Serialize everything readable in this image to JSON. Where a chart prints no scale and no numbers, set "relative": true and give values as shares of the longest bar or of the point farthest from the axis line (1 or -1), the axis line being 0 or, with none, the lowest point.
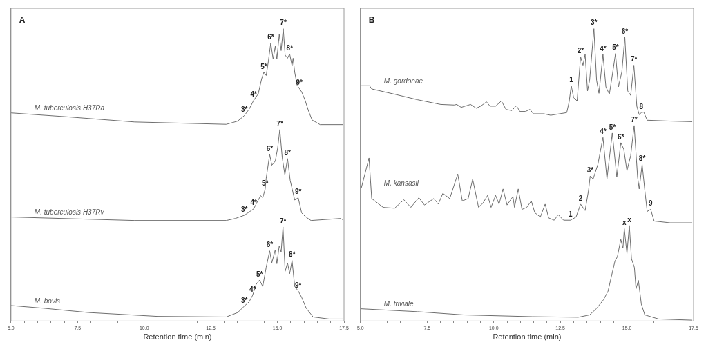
{
  "chart_data": [
    {
      "type": "line",
      "title": "A",
      "xlabel": "Retention time (min)",
      "relative": true,
      "grid": false,
      "legend": false,
      "marker": "none",
      "line_style": "solid",
      "xlim": [
        5,
        17.5
      ],
      "xticks": [
        {
          "value": 5,
          "label": "5.0"
        },
        {
          "value": 5.5,
          "label": null
        },
        {
          "value": 6,
          "label": null
        },
        {
          "value": 6.5,
          "label": null
        },
        {
          "value": 7,
          "label": null
        },
        {
          "value": 7.5,
          "label": "7.5"
        },
        {
          "value": 8,
          "label": null
        },
        {
          "value": 8.5,
          "label": null
        },
        {
          "value": 9,
          "label": null
        },
        {
          "value": 9.5,
          "label": null
        },
        {
          "value": 10,
          "label": "10.0"
        },
        {
          "value": 10.5,
          "label": null
        },
        {
          "value": 11,
          "label": null
        },
        {
          "value": 11.5,
          "label": null
        },
        {
          "value": 12,
          "label": null
        },
        {
          "value": 12.5,
          "label": "12.5"
        },
        {
          "value": 13,
          "label": null
        },
        {
          "value": 13.5,
          "label": null
        },
        {
          "value": 14,
          "label": null
        },
        {
          "value": 14.5,
          "label": null
        },
        {
          "value": 15,
          "label": "15.0"
        },
        {
          "value": 15.5,
          "label": null
        },
        {
          "value": 16,
          "label": null
        },
        {
          "value": 16.5,
          "label": null
        },
        {
          "value": 17,
          "label": null
        },
        {
          "value": 17.5,
          "label": "17.5"
        }
      ],
      "series": [
        {
          "name": "M. tuberculosis H37Ra",
          "color": "#6e6e6e",
          "x": [
            5.0,
            7.06,
            9.64,
            13.08,
            13.51,
            13.76,
            13.94,
            14.11,
            14.28,
            14.41,
            14.49,
            14.58,
            14.66,
            14.75,
            14.84,
            14.92,
            14.98,
            15.07,
            15.14,
            15.22,
            15.29,
            15.38,
            15.46,
            15.55,
            15.59,
            15.65,
            15.74,
            15.82,
            15.91,
            16.04,
            16.17,
            16.3,
            16.6,
            17.45
          ],
          "values": [
            0.712,
            0.699,
            0.681,
            0.673,
            0.684,
            0.703,
            0.725,
            0.755,
            0.777,
            0.829,
            0.851,
            0.84,
            0.888,
            0.951,
            0.896,
            0.94,
            0.896,
            0.981,
            0.925,
            1.0,
            0.91,
            0.899,
            0.914,
            0.873,
            0.899,
            0.851,
            0.807,
            0.796,
            0.784,
            0.755,
            0.718,
            0.688,
            0.672,
            0.672
          ]
        },
        {
          "name": "M. tuberculosis H37Rv",
          "color": "#6e6e6e",
          "x": [
            5.0,
            9.64,
            13.08,
            13.42,
            13.76,
            13.94,
            14.11,
            14.24,
            14.37,
            14.45,
            14.54,
            14.58,
            14.71,
            14.79,
            14.92,
            15.01,
            15.09,
            15.18,
            15.28,
            15.38,
            15.48,
            15.65,
            15.78,
            15.91,
            16.04,
            16.26,
            17.37,
            17.45
          ],
          "values": [
            0.356,
            0.344,
            0.344,
            0.351,
            0.362,
            0.373,
            0.384,
            0.407,
            0.429,
            0.422,
            0.451,
            0.489,
            0.57,
            0.533,
            0.547,
            0.592,
            0.655,
            0.56,
            0.5,
            0.556,
            0.481,
            0.414,
            0.422,
            0.37,
            0.358,
            0.344,
            0.351,
            0.347
          ]
        },
        {
          "name": "M. bovis",
          "color": "#6e6e6e",
          "x": [
            5.0,
            6.2,
            7.92,
            10.5,
            13.08,
            13.51,
            13.76,
            13.94,
            14.07,
            14.2,
            14.33,
            14.45,
            14.58,
            14.71,
            14.79,
            14.92,
            14.98,
            15.07,
            15.14,
            15.21,
            15.29,
            15.38,
            15.46,
            15.55,
            15.65,
            15.78,
            15.91,
            16.08,
            16.34,
            16.94,
            17.45
          ],
          "values": [
            0.053,
            0.044,
            0.029,
            0.016,
            0.014,
            0.029,
            0.051,
            0.066,
            0.088,
            0.125,
            0.14,
            0.118,
            0.184,
            0.24,
            0.199,
            0.244,
            0.196,
            0.258,
            0.236,
            0.322,
            0.17,
            0.199,
            0.162,
            0.207,
            0.118,
            0.103,
            0.081,
            0.044,
            0.014,
            0.007,
            0.007
          ]
        }
      ],
      "annotations": [
        {
          "text": "3*",
          "x": 13.76,
          "y": 0.703
        },
        {
          "text": "4*",
          "x": 14.11,
          "y": 0.755
        },
        {
          "text": "5*",
          "x": 14.49,
          "y": 0.851
        },
        {
          "text": "6*",
          "x": 14.75,
          "y": 0.951
        },
        {
          "text": "7*",
          "x": 15.22,
          "y": 1.0
        },
        {
          "text": "8*",
          "x": 15.46,
          "y": 0.914
        },
        {
          "text": "9*",
          "x": 15.82,
          "y": 0.796
        },
        {
          "text": "3*",
          "x": 13.76,
          "y": 0.362
        },
        {
          "text": "4*",
          "x": 14.11,
          "y": 0.384
        },
        {
          "text": "5*",
          "x": 14.54,
          "y": 0.451
        },
        {
          "text": "6*",
          "x": 14.71,
          "y": 0.57
        },
        {
          "text": "7*",
          "x": 15.09,
          "y": 0.655
        },
        {
          "text": "8*",
          "x": 15.38,
          "y": 0.556
        },
        {
          "text": "9*",
          "x": 15.78,
          "y": 0.422
        },
        {
          "text": "3*",
          "x": 13.76,
          "y": 0.051
        },
        {
          "text": "4*",
          "x": 14.07,
          "y": 0.088
        },
        {
          "text": "5*",
          "x": 14.33,
          "y": 0.14
        },
        {
          "text": "6*",
          "x": 14.71,
          "y": 0.24
        },
        {
          "text": "7*",
          "x": 15.21,
          "y": 0.322
        },
        {
          "text": "8*",
          "x": 15.55,
          "y": 0.207
        },
        {
          "text": "9*",
          "x": 15.78,
          "y": 0.103
        }
      ]
    },
    {
      "type": "line",
      "title": "B",
      "xlabel": "Retention time (min)",
      "relative": true,
      "grid": false,
      "legend": false,
      "marker": "none",
      "line_style": "solid",
      "xlim": [
        5,
        17.5
      ],
      "xticks": [
        {
          "value": 5,
          "label": "5.0"
        },
        {
          "value": 5.5,
          "label": null
        },
        {
          "value": 6,
          "label": null
        },
        {
          "value": 6.5,
          "label": null
        },
        {
          "value": 7,
          "label": null
        },
        {
          "value": 7.5,
          "label": "7.5"
        },
        {
          "value": 8,
          "label": null
        },
        {
          "value": 8.5,
          "label": null
        },
        {
          "value": 9,
          "label": null
        },
        {
          "value": 9.5,
          "label": null
        },
        {
          "value": 10,
          "label": "10.0"
        },
        {
          "value": 10.5,
          "label": null
        },
        {
          "value": 11,
          "label": null
        },
        {
          "value": 11.5,
          "label": null
        },
        {
          "value": 12,
          "label": null
        },
        {
          "value": 12.5,
          "label": "12.5"
        },
        {
          "value": 13,
          "label": null
        },
        {
          "value": 13.5,
          "label": null
        },
        {
          "value": 14,
          "label": null
        },
        {
          "value": 14.5,
          "label": null
        },
        {
          "value": 15,
          "label": "15.0"
        },
        {
          "value": 15.5,
          "label": null
        },
        {
          "value": 16,
          "label": null
        },
        {
          "value": 16.5,
          "label": null
        },
        {
          "value": 17,
          "label": null
        },
        {
          "value": 17.5,
          "label": "17.5"
        }
      ],
      "series": [
        {
          "name": "M. gordonae",
          "color": "#6e6e6e",
          "x": [
            5.0,
            5.34,
            5.42,
            6.28,
            7.14,
            8.01,
            8.52,
            8.61,
            8.78,
            9.13,
            9.34,
            9.51,
            9.73,
            9.86,
            10.07,
            10.29,
            10.46,
            10.68,
            10.85,
            10.98,
            11.19,
            11.36,
            11.49,
            11.88,
            12.14,
            12.74,
            12.83,
            12.91,
            13.0,
            13.13,
            13.26,
            13.35,
            13.43,
            13.52,
            13.6,
            13.76,
            13.86,
            13.95,
            14.1,
            14.21,
            14.34,
            14.47,
            14.57,
            14.68,
            14.81,
            14.92,
            15.03,
            15.14,
            15.26,
            15.37,
            15.46,
            15.54,
            15.63,
            15.76,
            16.62,
            17.45
          ],
          "values": [
            0.805,
            0.805,
            0.794,
            0.776,
            0.757,
            0.741,
            0.739,
            0.741,
            0.731,
            0.741,
            0.728,
            0.735,
            0.75,
            0.735,
            0.735,
            0.753,
            0.724,
            0.72,
            0.737,
            0.717,
            0.717,
            0.724,
            0.709,
            0.709,
            0.704,
            0.713,
            0.75,
            0.805,
            0.764,
            0.753,
            0.904,
            0.875,
            0.912,
            0.787,
            0.824,
            1.0,
            0.824,
            0.779,
            0.912,
            0.801,
            0.776,
            0.853,
            0.915,
            0.801,
            0.853,
            0.971,
            0.787,
            0.772,
            0.875,
            0.735,
            0.706,
            0.713,
            0.715,
            0.687,
            0.684,
            0.682
          ]
        },
        {
          "name": "M. kansasii",
          "color": "#6e6e6e",
          "x": [
            5.03,
            5.32,
            5.42,
            5.85,
            6.28,
            6.63,
            6.89,
            7.19,
            7.4,
            7.75,
            7.92,
            8.09,
            8.35,
            8.65,
            8.82,
            9.04,
            9.21,
            9.43,
            9.6,
            9.77,
            9.9,
            10.07,
            10.2,
            10.35,
            10.5,
            10.72,
            10.78,
            10.92,
            11.06,
            11.24,
            11.41,
            11.54,
            11.75,
            11.93,
            12.06,
            12.27,
            12.42,
            12.62,
            12.88,
            13.09,
            13.26,
            13.43,
            13.56,
            13.62,
            13.73,
            13.91,
            14.1,
            14.25,
            14.45,
            14.62,
            14.77,
            14.88,
            15.0,
            15.14,
            15.27,
            15.4,
            15.46,
            15.57,
            15.67,
            15.76,
            15.89,
            16.02,
            16.62,
            17.45
          ],
          "values": [
            0.455,
            0.558,
            0.419,
            0.389,
            0.386,
            0.415,
            0.389,
            0.422,
            0.397,
            0.419,
            0.4,
            0.437,
            0.419,
            0.503,
            0.411,
            0.419,
            0.485,
            0.389,
            0.404,
            0.43,
            0.389,
            0.43,
            0.4,
            0.452,
            0.397,
            0.426,
            0.389,
            0.452,
            0.382,
            0.389,
            0.411,
            0.371,
            0.356,
            0.4,
            0.353,
            0.345,
            0.364,
            0.345,
            0.345,
            0.356,
            0.4,
            0.378,
            0.448,
            0.496,
            0.486,
            0.536,
            0.628,
            0.486,
            0.643,
            0.492,
            0.61,
            0.588,
            0.514,
            0.566,
            0.669,
            0.492,
            0.452,
            0.536,
            0.448,
            0.375,
            0.382,
            0.342,
            0.336,
            0.336
          ]
        },
        {
          "name": "M. triviale",
          "color": "#6e6e6e",
          "x": [
            5.0,
            7.14,
            8.87,
            11.45,
            13.17,
            13.6,
            13.86,
            14.12,
            14.29,
            14.42,
            14.55,
            14.64,
            14.77,
            14.85,
            14.9,
            15.0,
            15.09,
            15.17,
            15.28,
            15.34,
            15.43,
            15.54,
            15.67,
            16.19,
            17.45
          ],
          "values": [
            0.042,
            0.032,
            0.021,
            0.015,
            0.013,
            0.021,
            0.043,
            0.073,
            0.102,
            0.154,
            0.205,
            0.22,
            0.279,
            0.249,
            0.316,
            0.231,
            0.327,
            0.213,
            0.183,
            0.11,
            0.139,
            0.058,
            0.021,
            0.007,
            0.003
          ]
        }
      ],
      "annotations": [
        {
          "text": "1",
          "x": 12.91,
          "y": 0.805
        },
        {
          "text": "2*",
          "x": 13.26,
          "y": 0.904
        },
        {
          "text": "3*",
          "x": 13.76,
          "y": 1.0
        },
        {
          "text": "4*",
          "x": 14.1,
          "y": 0.912
        },
        {
          "text": "5*",
          "x": 14.57,
          "y": 0.915
        },
        {
          "text": "6*",
          "x": 14.92,
          "y": 0.971
        },
        {
          "text": "7*",
          "x": 15.26,
          "y": 0.875
        },
        {
          "text": "8",
          "x": 15.54,
          "y": 0.713
        },
        {
          "text": "1",
          "x": 12.88,
          "y": 0.345
        },
        {
          "text": "2",
          "x": 13.26,
          "y": 0.4
        },
        {
          "text": "3*",
          "x": 13.62,
          "y": 0.496
        },
        {
          "text": "4*",
          "x": 14.1,
          "y": 0.628
        },
        {
          "text": "5*",
          "x": 14.45,
          "y": 0.643
        },
        {
          "text": "6*",
          "x": 14.77,
          "y": 0.61
        },
        {
          "text": "7*",
          "x": 15.27,
          "y": 0.669
        },
        {
          "text": "8*",
          "x": 15.57,
          "y": 0.536
        },
        {
          "text": "9",
          "x": 15.89,
          "y": 0.382
        },
        {
          "text": "x",
          "x": 14.9,
          "y": 0.316
        },
        {
          "text": "x",
          "x": 15.09,
          "y": 0.327
        }
      ]
    }
  ]
}
